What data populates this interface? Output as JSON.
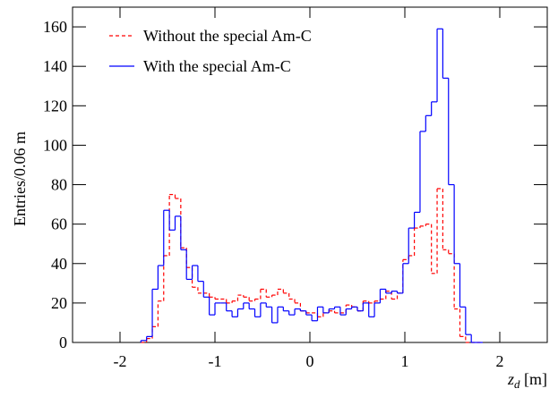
{
  "chart_data": {
    "type": "histogram",
    "x_label": "z_d [m]",
    "y_label": "Entries/0.06 m",
    "bins": [
      -1.78,
      -1.72,
      -1.66,
      -1.6,
      -1.54,
      -1.48,
      -1.42,
      -1.36,
      -1.3,
      -1.24,
      -1.18,
      -1.12,
      -1.06,
      -1.0,
      -0.94,
      -0.88,
      -0.82,
      -0.76,
      -0.7,
      -0.64,
      -0.58,
      -0.52,
      -0.46,
      -0.4,
      -0.34,
      -0.28,
      -0.22,
      -0.16,
      -0.1,
      -0.04,
      0.02,
      0.08,
      0.14,
      0.2,
      0.26,
      0.32,
      0.38,
      0.44,
      0.5,
      0.56,
      0.62,
      0.68,
      0.74,
      0.8,
      0.86,
      0.92,
      0.98,
      1.04,
      1.1,
      1.16,
      1.22,
      1.28,
      1.34,
      1.4,
      1.46,
      1.52,
      1.58,
      1.64,
      1.7,
      1.76,
      1.82
    ],
    "series": [
      {
        "name": "Without the special Am-C",
        "color": "#ff0000",
        "dashed": true,
        "values": [
          0,
          2,
          8,
          21,
          44,
          75,
          73,
          48,
          38,
          28,
          25,
          25,
          23,
          22,
          22,
          20,
          21,
          24,
          23,
          21,
          22,
          27,
          23,
          24,
          27,
          25,
          22,
          20,
          16,
          15,
          15,
          13,
          15,
          16,
          15,
          15,
          19,
          18,
          16,
          21,
          20,
          21,
          22,
          26,
          22,
          25,
          42,
          44,
          58,
          59,
          60,
          35,
          78,
          47,
          45,
          17,
          3,
          0,
          0,
          0
        ]
      },
      {
        "name": "With the special Am-C",
        "color": "#0000ff",
        "dashed": false,
        "values": [
          1,
          3,
          27,
          39,
          67,
          57,
          64,
          47,
          32,
          39,
          31,
          23,
          14,
          20,
          20,
          16,
          13,
          17,
          20,
          17,
          13,
          20,
          18,
          10,
          18,
          16,
          14,
          17,
          16,
          14,
          11,
          18,
          15,
          17,
          18,
          14,
          17,
          18,
          16,
          20,
          13,
          20,
          27,
          25,
          26,
          25,
          40,
          58,
          66,
          107,
          115,
          122,
          159,
          134,
          80,
          40,
          18,
          4,
          0,
          0
        ]
      }
    ],
    "xlim": [
      -2.5,
      2.5
    ],
    "ylim": [
      0,
      170
    ],
    "xticks": [
      -2,
      -1,
      0,
      1,
      2
    ],
    "yticks": [
      0,
      20,
      40,
      60,
      80,
      100,
      120,
      140,
      160
    ]
  }
}
